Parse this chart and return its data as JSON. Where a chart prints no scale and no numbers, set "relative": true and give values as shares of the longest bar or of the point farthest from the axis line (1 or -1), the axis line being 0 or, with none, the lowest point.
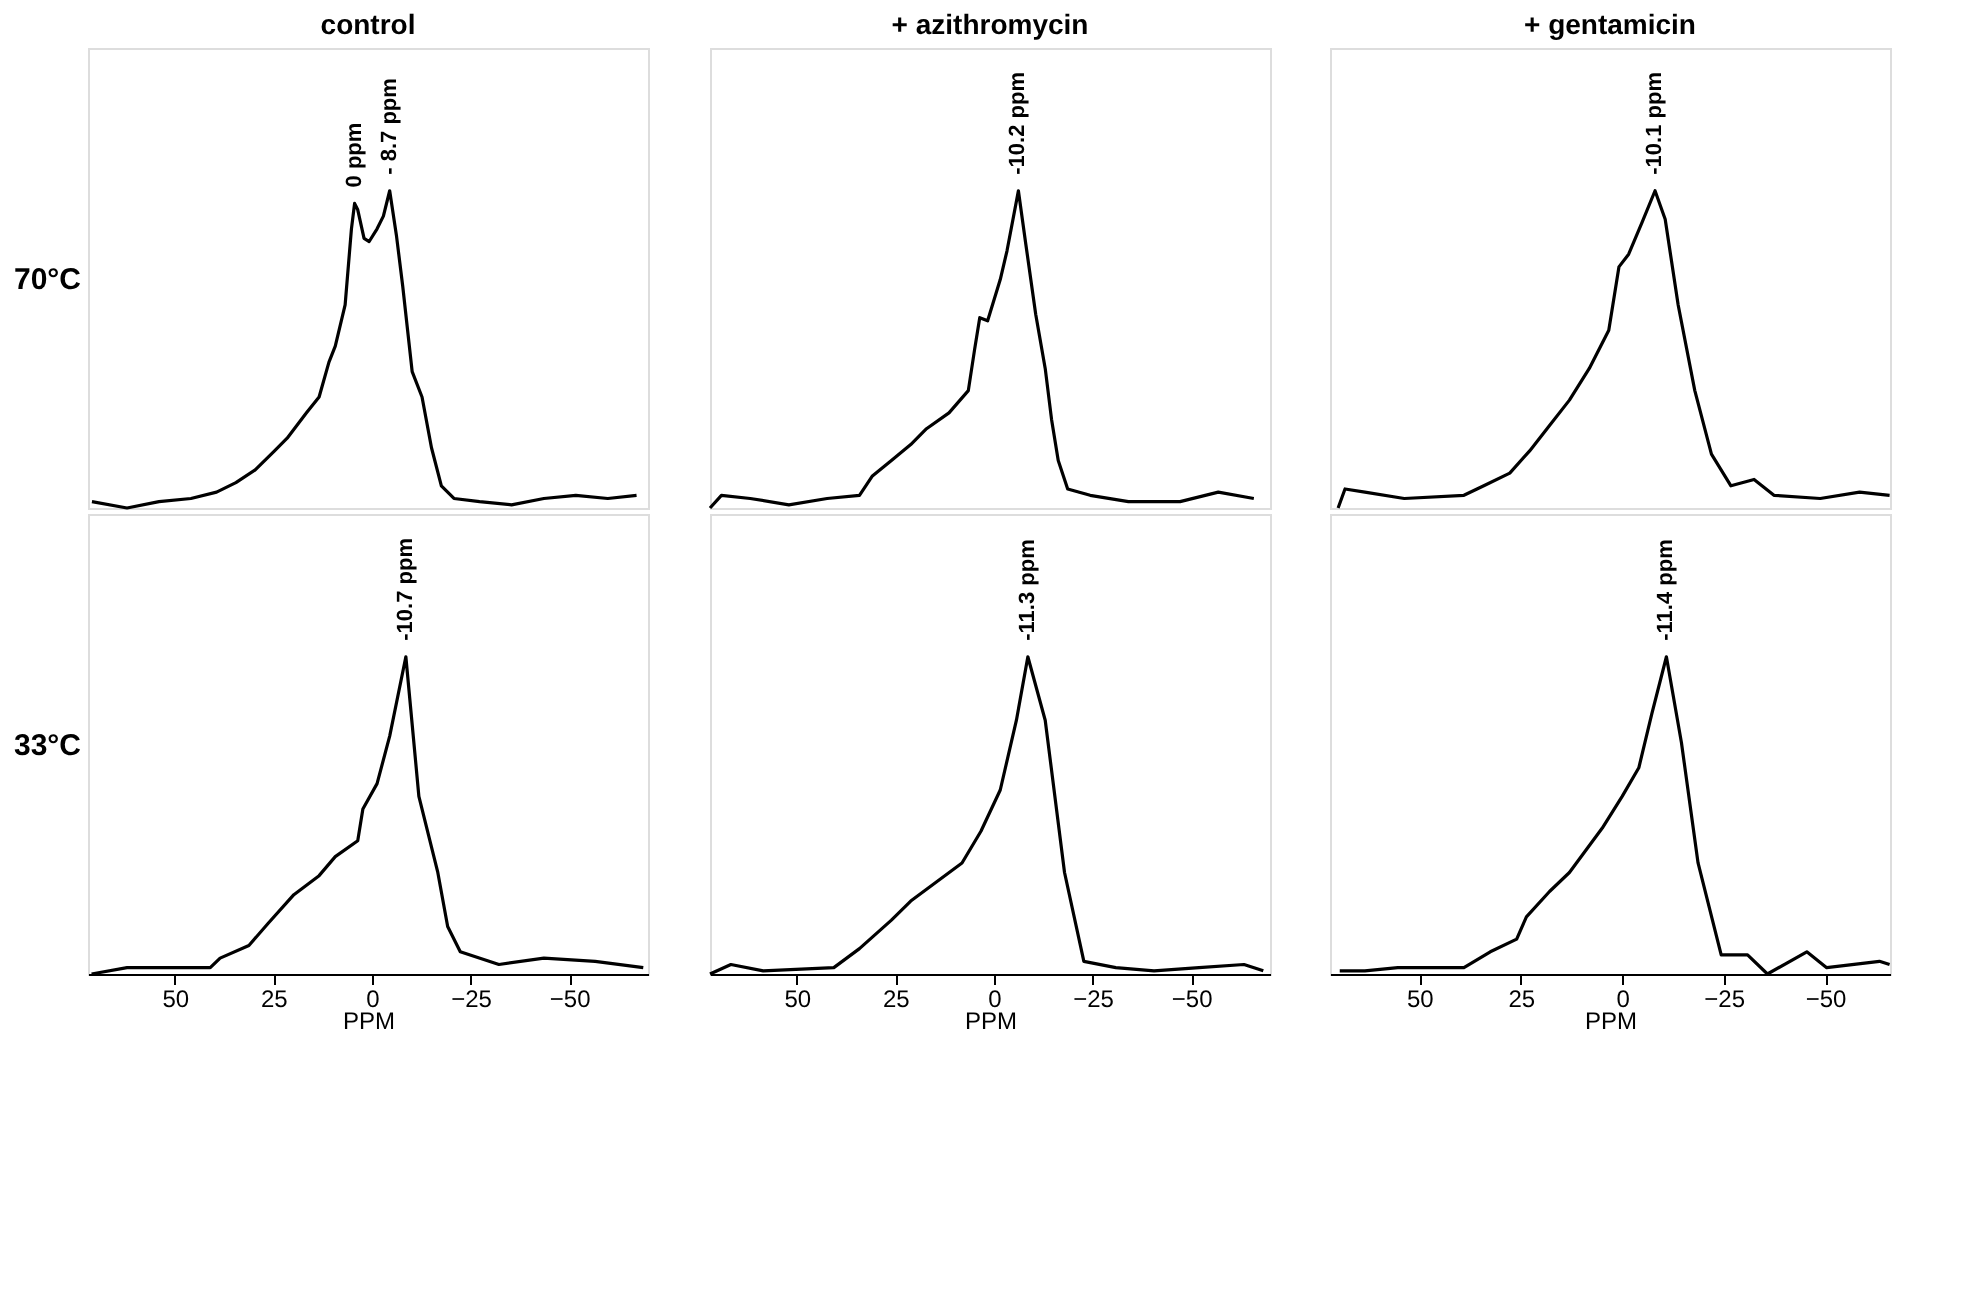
{
  "chart_data": [
    {
      "type": "line",
      "title": "control",
      "ylabel": "70°C",
      "relative": true,
      "xlim": [
        72,
        -70
      ],
      "tick_labels": false,
      "x": [
        71,
        62.1,
        54.0,
        45.9,
        39.4,
        34.5,
        29.6,
        24.7,
        21.5,
        16.6,
        13.4,
        10.9,
        9.3,
        6.8,
        5.2,
        4.4,
        3.6,
        2.0,
        0.7,
        -1.3,
        -2.9,
        -4.5,
        -6.2,
        -7.8,
        -10.2,
        -12.7,
        -15.1,
        -17.6,
        -20.8,
        -27.3,
        -35.4,
        -43.6,
        -51.7,
        -59.8,
        -67.1
      ],
      "series": [
        {
          "color": "#000000",
          "values": [
            0.02,
            0.0,
            0.02,
            0.03,
            0.05,
            0.08,
            0.12,
            0.18,
            0.22,
            0.3,
            0.35,
            0.46,
            0.51,
            0.64,
            0.88,
            0.96,
            0.94,
            0.85,
            0.84,
            0.88,
            0.92,
            1.0,
            0.86,
            0.7,
            0.43,
            0.35,
            0.19,
            0.07,
            0.03,
            0.02,
            0.01,
            0.03,
            0.04,
            0.03,
            0.04
          ]
        }
      ],
      "annotations": [
        "0 ppm",
        "- 8.7 ppm"
      ]
    },
    {
      "type": "line",
      "title": "+ azithromycin",
      "relative": true,
      "xlim": [
        72,
        -70
      ],
      "tick_labels": false,
      "x": [
        72,
        69.1,
        61.8,
        52.0,
        42.3,
        34.1,
        30.9,
        26.0,
        21.1,
        17.1,
        11.4,
        6.5,
        4.9,
        3.6,
        1.6,
        -1.6,
        -3.3,
        -6.2,
        -8.1,
        -10.6,
        -13.0,
        -14.6,
        -16.3,
        -18.7,
        -24.4,
        -34.1,
        -47.2,
        -56.9,
        -65.9
      ],
      "series": [
        {
          "color": "#000000",
          "values": [
            0.0,
            0.04,
            0.03,
            0.01,
            0.03,
            0.04,
            0.1,
            0.15,
            0.2,
            0.25,
            0.3,
            0.37,
            0.5,
            0.6,
            0.59,
            0.72,
            0.81,
            1.0,
            0.83,
            0.61,
            0.44,
            0.28,
            0.15,
            0.06,
            0.04,
            0.02,
            0.02,
            0.05,
            0.03
          ]
        }
      ],
      "annotations": [
        "-10.2 ppm"
      ]
    },
    {
      "type": "line",
      "title": "+ gentamicin",
      "relative": true,
      "xlim": [
        72,
        -66
      ],
      "tick_labels": false,
      "x": [
        70,
        68.3,
        63.4,
        53.7,
        39.0,
        34.1,
        27.7,
        22.8,
        17.9,
        13.0,
        8.1,
        3.3,
        0.8,
        -1.6,
        -4.9,
        -8.1,
        -10.6,
        -13.8,
        -17.9,
        -22.0,
        -26.8,
        -32.5,
        -37.4,
        -48.8,
        -58.5,
        -65.9
      ],
      "series": [
        {
          "color": "#000000",
          "values": [
            0.0,
            0.06,
            0.05,
            0.03,
            0.04,
            0.07,
            0.11,
            0.18,
            0.26,
            0.34,
            0.44,
            0.56,
            0.76,
            0.8,
            0.9,
            1.0,
            0.91,
            0.64,
            0.37,
            0.17,
            0.07,
            0.09,
            0.04,
            0.03,
            0.05,
            0.04
          ]
        }
      ],
      "annotations": [
        "-10.1 ppm"
      ]
    },
    {
      "type": "line",
      "ylabel": "33°C",
      "xlabel": "PPM",
      "relative": true,
      "xlim": [
        72,
        -70
      ],
      "xticks": [
        50,
        25,
        0,
        -25,
        -50
      ],
      "tick_labels": "x",
      "x": [
        71.1,
        62.1,
        54.0,
        41.0,
        38.5,
        31.2,
        26.3,
        19.8,
        13.4,
        9.3,
        3.6,
        2.3,
        -1.3,
        -4.5,
        -8.6,
        -11.9,
        -16.7,
        -19.2,
        -22.4,
        -32.2,
        -43.6,
        -56.6,
        -68.8
      ],
      "series": [
        {
          "color": "#000000",
          "values": [
            0.0,
            0.02,
            0.02,
            0.02,
            0.05,
            0.09,
            0.16,
            0.25,
            0.31,
            0.37,
            0.42,
            0.52,
            0.6,
            0.75,
            1.0,
            0.56,
            0.32,
            0.15,
            0.07,
            0.03,
            0.05,
            0.04,
            0.02
          ]
        }
      ],
      "annotations": [
        "-10.7 ppm"
      ]
    },
    {
      "type": "line",
      "xlabel": "PPM",
      "relative": true,
      "xlim": [
        72,
        -70
      ],
      "xticks": [
        50,
        25,
        0,
        -25,
        -50
      ],
      "tick_labels": "x",
      "x": [
        72,
        66.7,
        58.5,
        40.6,
        34.1,
        26.0,
        21.1,
        14.6,
        8.1,
        3.3,
        -1.6,
        -5.7,
        -8.6,
        -13.0,
        -17.9,
        -22.8,
        -30.9,
        -40.6,
        -52.0,
        -63.4,
        -68.3
      ],
      "series": [
        {
          "color": "#000000",
          "values": [
            0.0,
            0.03,
            0.01,
            0.02,
            0.08,
            0.17,
            0.23,
            0.29,
            0.35,
            0.45,
            0.58,
            0.8,
            1.0,
            0.8,
            0.32,
            0.04,
            0.02,
            0.01,
            0.02,
            0.03,
            0.01
          ]
        }
      ],
      "annotations": [
        "-11.3 ppm"
      ]
    },
    {
      "type": "line",
      "xlabel": "PPM",
      "relative": true,
      "xlim": [
        72,
        -66
      ],
      "xticks": [
        50,
        25,
        0,
        -25,
        -50
      ],
      "tick_labels": "x",
      "x": [
        69.6,
        63.4,
        55.3,
        39.0,
        32.5,
        26.0,
        23.6,
        17.9,
        13.0,
        4.9,
        0,
        -4.1,
        -7.3,
        -10.9,
        -14.6,
        -18.7,
        -24.4,
        -30.9,
        -35.8,
        -45.5,
        -50.4,
        -63.4,
        -65.9
      ],
      "series": [
        {
          "color": "#000000",
          "values": [
            0.01,
            0.01,
            0.02,
            0.02,
            0.07,
            0.11,
            0.18,
            0.26,
            0.32,
            0.46,
            0.56,
            0.65,
            0.82,
            1.0,
            0.73,
            0.35,
            0.06,
            0.06,
            0.0,
            0.07,
            0.02,
            0.04,
            0.03
          ]
        }
      ],
      "annotations": [
        "-11.4 ppm"
      ]
    }
  ]
}
